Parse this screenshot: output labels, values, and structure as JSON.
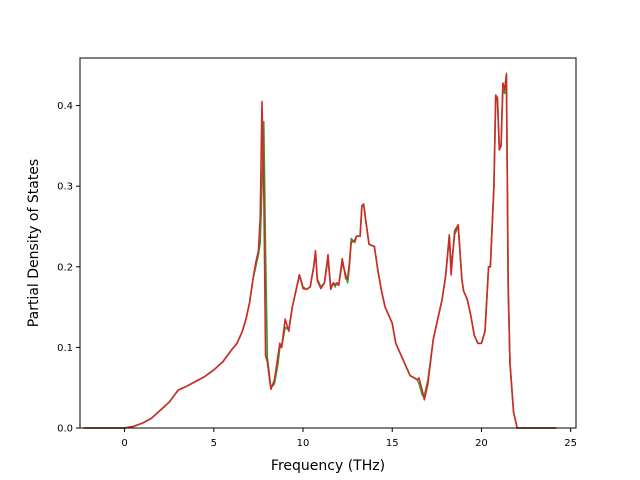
{
  "chart_data": {
    "type": "line",
    "title": "",
    "xlabel": "Frequency (THz)",
    "ylabel": "Partial Density of States",
    "xlim": [
      -2.5,
      25.3
    ],
    "ylim": [
      0.0,
      0.459
    ],
    "xticks": [
      0,
      5,
      10,
      15,
      20,
      25
    ],
    "yticks": [
      0.0,
      0.1,
      0.2,
      0.3,
      0.4
    ],
    "ytick_labels": [
      "0.0",
      "0.1",
      "0.2",
      "0.3",
      "0.4"
    ],
    "grid": false,
    "legend": "none",
    "colors": [
      "#2ca02c",
      "#d62728"
    ],
    "series": [
      {
        "x": [
          -2.3,
          0.0,
          0.5,
          1.0,
          1.5,
          2.0,
          2.5,
          3.0,
          3.2,
          3.5,
          4.0,
          4.5,
          5.0,
          5.5,
          6.0,
          6.3,
          6.6,
          6.8,
          7.0,
          7.2,
          7.35,
          7.5,
          7.6,
          7.7,
          7.8,
          7.9,
          8.0,
          8.2,
          8.4,
          8.6,
          8.7,
          8.8,
          9.0,
          9.2,
          9.4,
          9.6,
          9.8,
          10.0,
          10.2,
          10.4,
          10.6,
          10.7,
          10.8,
          11.0,
          11.2,
          11.4,
          11.55,
          11.7,
          11.8,
          11.9,
          12.0,
          12.2,
          12.4,
          12.5,
          12.6,
          12.7,
          12.9,
          13.0,
          13.2,
          13.3,
          13.4,
          13.5,
          13.7,
          14.0,
          14.2,
          14.4,
          14.6,
          15.0,
          15.2,
          15.4,
          15.6,
          16.0,
          16.4,
          16.5,
          16.7,
          16.8,
          17.0,
          17.3,
          17.5,
          17.8,
          18.0,
          18.2,
          18.3,
          18.5,
          18.7,
          18.9,
          19.0,
          19.2,
          19.4,
          19.6,
          19.8,
          20.0,
          20.2,
          20.4,
          20.5,
          20.7,
          20.8,
          20.9,
          21.0,
          21.1,
          21.2,
          21.3,
          21.4,
          21.5,
          21.6,
          21.8,
          22.0,
          22.2,
          22.5,
          24.2
        ],
        "y": [
          0.0,
          0.0,
          0.002,
          0.006,
          0.012,
          0.022,
          0.032,
          0.047,
          0.049,
          0.052,
          0.058,
          0.064,
          0.072,
          0.082,
          0.097,
          0.105,
          0.12,
          0.135,
          0.155,
          0.185,
          0.2,
          0.215,
          0.23,
          0.3,
          0.38,
          0.22,
          0.088,
          0.05,
          0.055,
          0.08,
          0.1,
          0.1,
          0.125,
          0.122,
          0.15,
          0.17,
          0.19,
          0.175,
          0.172,
          0.175,
          0.2,
          0.218,
          0.185,
          0.175,
          0.18,
          0.21,
          0.175,
          0.18,
          0.175,
          0.18,
          0.177,
          0.205,
          0.19,
          0.18,
          0.2,
          0.235,
          0.23,
          0.238,
          0.238,
          0.276,
          0.278,
          0.26,
          0.228,
          0.225,
          0.195,
          0.17,
          0.15,
          0.13,
          0.105,
          0.095,
          0.085,
          0.065,
          0.06,
          0.055,
          0.04,
          0.04,
          0.06,
          0.11,
          0.13,
          0.16,
          0.19,
          0.24,
          0.2,
          0.24,
          0.25,
          0.185,
          0.17,
          0.16,
          0.14,
          0.115,
          0.105,
          0.105,
          0.12,
          0.2,
          0.2,
          0.3,
          0.41,
          0.405,
          0.35,
          0.35,
          0.42,
          0.415,
          0.44,
          0.18,
          0.08,
          0.02,
          0.0,
          0.0,
          0.0,
          0.0
        ]
      },
      {
        "x": [
          -2.3,
          0.0,
          0.5,
          1.0,
          1.5,
          2.0,
          2.5,
          3.0,
          3.2,
          3.5,
          4.0,
          4.5,
          5.0,
          5.5,
          6.0,
          6.3,
          6.6,
          6.8,
          7.0,
          7.2,
          7.35,
          7.5,
          7.6,
          7.7,
          7.8,
          7.9,
          8.0,
          8.2,
          8.4,
          8.6,
          8.7,
          8.8,
          9.0,
          9.2,
          9.4,
          9.6,
          9.8,
          10.0,
          10.2,
          10.4,
          10.6,
          10.7,
          10.8,
          11.0,
          11.2,
          11.4,
          11.55,
          11.7,
          11.8,
          11.9,
          12.0,
          12.2,
          12.4,
          12.5,
          12.6,
          12.7,
          12.9,
          13.0,
          13.2,
          13.3,
          13.4,
          13.5,
          13.7,
          14.0,
          14.2,
          14.4,
          14.6,
          15.0,
          15.2,
          15.4,
          15.6,
          16.0,
          16.4,
          16.5,
          16.7,
          16.8,
          17.0,
          17.3,
          17.5,
          17.8,
          18.0,
          18.2,
          18.3,
          18.5,
          18.7,
          18.9,
          19.0,
          19.2,
          19.4,
          19.6,
          19.8,
          20.0,
          20.2,
          20.4,
          20.5,
          20.7,
          20.8,
          20.9,
          21.0,
          21.1,
          21.2,
          21.3,
          21.4,
          21.5,
          21.6,
          21.8,
          22.0,
          22.2,
          22.5,
          24.2
        ],
        "y": [
          0.0,
          0.0,
          0.002,
          0.006,
          0.012,
          0.022,
          0.032,
          0.047,
          0.049,
          0.052,
          0.058,
          0.064,
          0.072,
          0.082,
          0.097,
          0.105,
          0.12,
          0.135,
          0.155,
          0.185,
          0.205,
          0.22,
          0.26,
          0.405,
          0.3,
          0.09,
          0.082,
          0.048,
          0.06,
          0.09,
          0.105,
          0.1,
          0.135,
          0.12,
          0.15,
          0.17,
          0.19,
          0.173,
          0.172,
          0.175,
          0.2,
          0.22,
          0.183,
          0.173,
          0.18,
          0.215,
          0.172,
          0.18,
          0.178,
          0.18,
          0.177,
          0.21,
          0.185,
          0.185,
          0.205,
          0.23,
          0.233,
          0.238,
          0.238,
          0.275,
          0.277,
          0.26,
          0.228,
          0.225,
          0.195,
          0.17,
          0.15,
          0.13,
          0.105,
          0.095,
          0.085,
          0.065,
          0.06,
          0.062,
          0.045,
          0.035,
          0.055,
          0.11,
          0.13,
          0.16,
          0.19,
          0.238,
          0.19,
          0.245,
          0.252,
          0.185,
          0.17,
          0.16,
          0.14,
          0.115,
          0.105,
          0.105,
          0.12,
          0.2,
          0.2,
          0.3,
          0.413,
          0.41,
          0.345,
          0.35,
          0.428,
          0.42,
          0.438,
          0.17,
          0.08,
          0.02,
          0.0,
          0.0,
          0.0,
          0.0
        ]
      }
    ]
  }
}
